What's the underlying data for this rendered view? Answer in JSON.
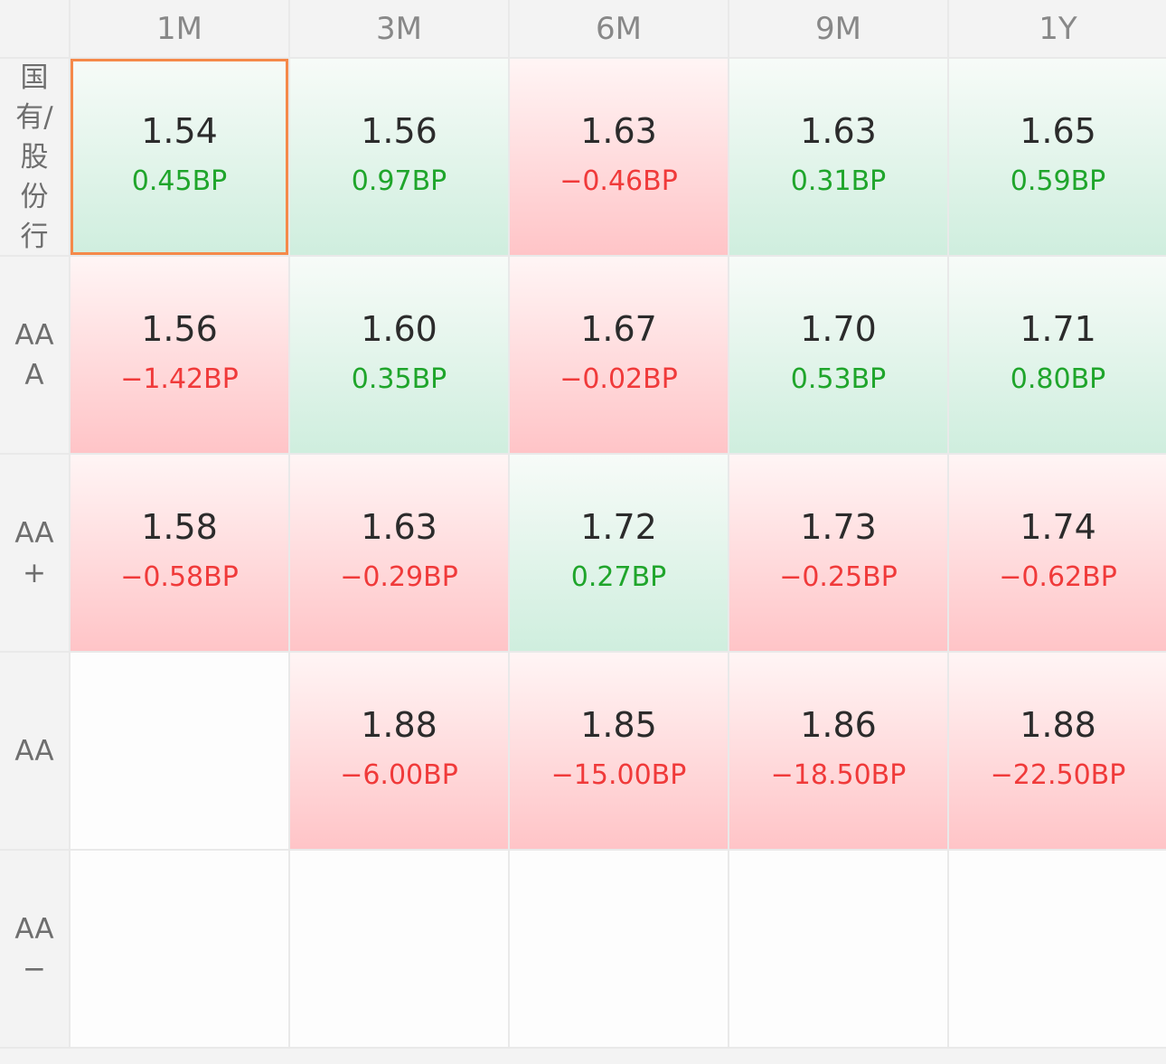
{
  "columns": [
    "1M",
    "3M",
    "6M",
    "9M",
    "1Y"
  ],
  "rows": [
    {
      "label": "国有/股份行",
      "cells": [
        {
          "rate": "1.54",
          "change": "0.45BP",
          "trend": "up",
          "selected": true
        },
        {
          "rate": "1.56",
          "change": "0.97BP",
          "trend": "up"
        },
        {
          "rate": "1.63",
          "change": "−0.46BP",
          "trend": "down"
        },
        {
          "rate": "1.63",
          "change": "0.31BP",
          "trend": "up"
        },
        {
          "rate": "1.65",
          "change": "0.59BP",
          "trend": "up"
        }
      ]
    },
    {
      "label": "AAA",
      "cells": [
        {
          "rate": "1.56",
          "change": "−1.42BP",
          "trend": "down"
        },
        {
          "rate": "1.60",
          "change": "0.35BP",
          "trend": "up"
        },
        {
          "rate": "1.67",
          "change": "−0.02BP",
          "trend": "down"
        },
        {
          "rate": "1.70",
          "change": "0.53BP",
          "trend": "up"
        },
        {
          "rate": "1.71",
          "change": "0.80BP",
          "trend": "up"
        }
      ]
    },
    {
      "label": "AA+",
      "cells": [
        {
          "rate": "1.58",
          "change": "−0.58BP",
          "trend": "down"
        },
        {
          "rate": "1.63",
          "change": "−0.29BP",
          "trend": "down"
        },
        {
          "rate": "1.72",
          "change": "0.27BP",
          "trend": "up"
        },
        {
          "rate": "1.73",
          "change": "−0.25BP",
          "trend": "down"
        },
        {
          "rate": "1.74",
          "change": "−0.62BP",
          "trend": "down"
        }
      ]
    },
    {
      "label": "AA",
      "cells": [
        {
          "rate": "",
          "change": "",
          "trend": "empty"
        },
        {
          "rate": "1.88",
          "change": "−6.00BP",
          "trend": "down"
        },
        {
          "rate": "1.85",
          "change": "−15.00BP",
          "trend": "down"
        },
        {
          "rate": "1.86",
          "change": "−18.50BP",
          "trend": "down"
        },
        {
          "rate": "1.88",
          "change": "−22.50BP",
          "trend": "down"
        }
      ]
    },
    {
      "label": "AA−",
      "cells": [
        {
          "rate": "",
          "change": "",
          "trend": "empty"
        },
        {
          "rate": "",
          "change": "",
          "trend": "empty"
        },
        {
          "rate": "",
          "change": "",
          "trend": "empty"
        },
        {
          "rate": "",
          "change": "",
          "trend": "empty"
        },
        {
          "rate": "",
          "change": "",
          "trend": "empty"
        }
      ]
    }
  ],
  "colors": {
    "up_text": "#1fa52b",
    "down_text": "#f03a3a",
    "selected_border": "#f5894a"
  }
}
